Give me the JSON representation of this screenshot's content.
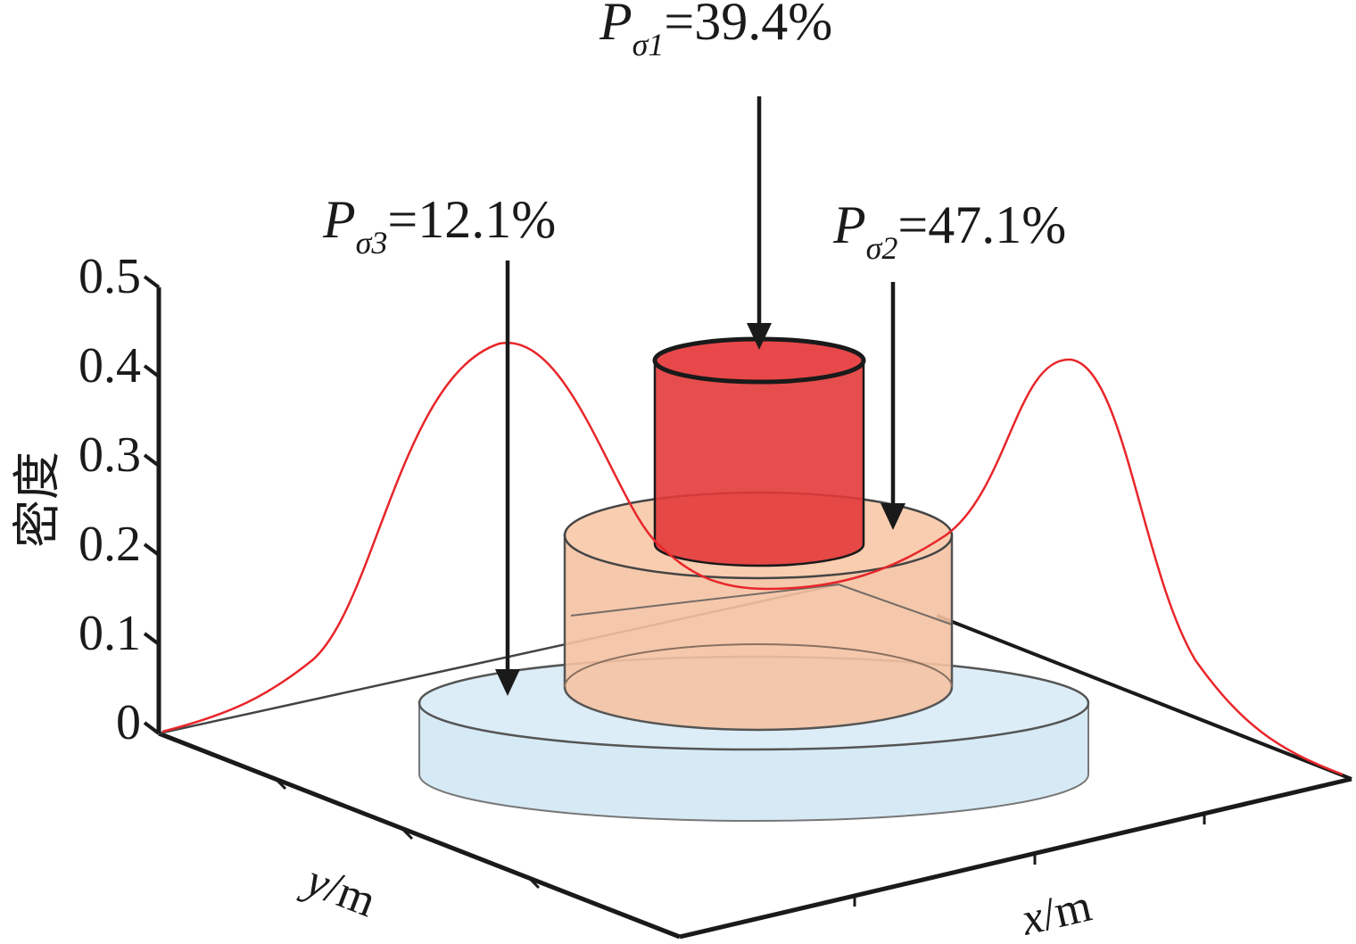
{
  "z_axis": {
    "label": "密度",
    "ticks": [
      "0",
      "0.1",
      "0.2",
      "0.3",
      "0.4",
      "0.5"
    ]
  },
  "x_axis": {
    "var": "x",
    "unit": "/m"
  },
  "y_axis": {
    "var": "y",
    "unit": "/m"
  },
  "annotations": [
    {
      "id": "sigma1",
      "symbol": "P",
      "subscript": "σ1",
      "value": "=39.4%"
    },
    {
      "id": "sigma2",
      "symbol": "P",
      "subscript": "σ2",
      "value": "=47.1%"
    },
    {
      "id": "sigma3",
      "symbol": "P",
      "subscript": "σ3",
      "value": "=12.1%"
    }
  ],
  "colors": {
    "curve": "#e8262a",
    "cyl_inner": "#e33a3a",
    "cyl_middle": "#f7c4a0",
    "cyl_outer": "#d6eaf6",
    "axis": "#1a1a1a"
  }
}
